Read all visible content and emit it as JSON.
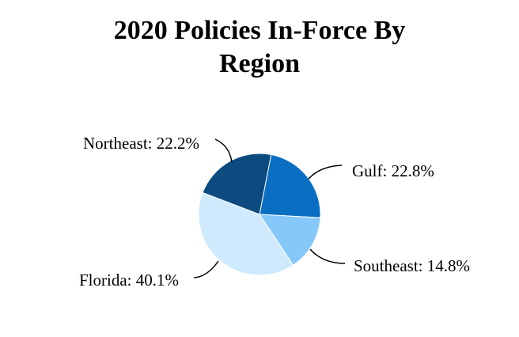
{
  "chart_data": {
    "type": "pie",
    "title": "2020 Policies In-Force By Region",
    "values": [
      22.8,
      14.8,
      40.1,
      22.2
    ],
    "value_labels": [
      "Gulf: 22.8%",
      "Southeast: 14.8%",
      "Florida: 40.1%",
      "Northeast: 22.2%"
    ],
    "colors": [
      "#0a6fc2",
      "#87c8fb",
      "#cfeafc",
      "#0c4a80"
    ]
  }
}
